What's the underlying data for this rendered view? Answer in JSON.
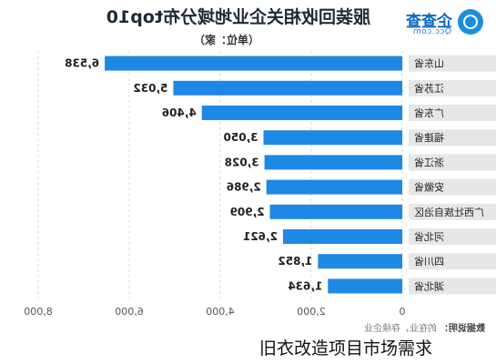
{
  "brand": {
    "name": "企查查",
    "domain": "Qcc.com",
    "icon": "qcc-logo-icon"
  },
  "colors": {
    "bar": "#1e88e5",
    "label_bg": "#e7e7e7",
    "grid": "#d9d9d9",
    "text": "#222222"
  },
  "unit_label": "（单位：家）",
  "source": {
    "heading": "数据说明：",
    "text": "的在业，存续企业"
  },
  "caption": "旧衣改造项目市场需求",
  "chart_data": {
    "type": "bar",
    "orientation": "horizontal",
    "mirrored": true,
    "title": "服装回收相关企业地域分布top10",
    "categories": [
      "山东省",
      "江苏省",
      "广东省",
      "福建省",
      "浙江省",
      "安徽省",
      "广西壮族自治区",
      "河北省",
      "四川省",
      "湖北省"
    ],
    "values": [
      6538,
      5032,
      4406,
      3050,
      3028,
      2986,
      2909,
      2621,
      1852,
      1634
    ],
    "value_labels": [
      "6,538",
      "5,032",
      "4,406",
      "3,050",
      "3,028",
      "2,986",
      "2,909",
      "2,621",
      "1,852",
      "1,634"
    ],
    "xticks": [
      "0",
      "2,000",
      "4,000",
      "6,000",
      "8,000"
    ],
    "xlim": [
      0,
      8000
    ],
    "grid": true,
    "legend": "none"
  }
}
